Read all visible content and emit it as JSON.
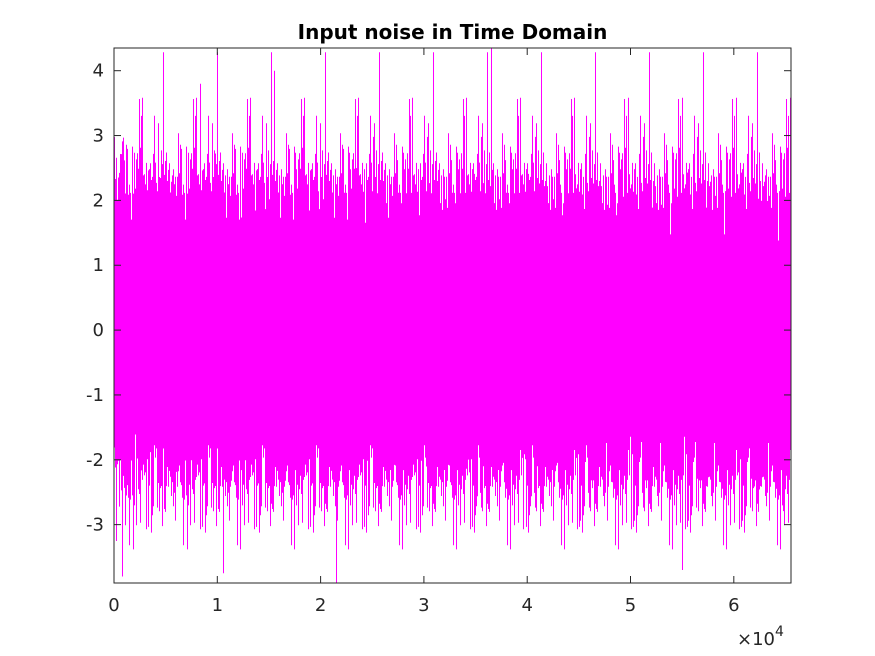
{
  "chart_data": {
    "type": "line",
    "title": "Input noise in Time Domain",
    "xlabel": "",
    "ylabel": "",
    "xlim": [
      0,
      65536
    ],
    "ylim": [
      -3.9,
      4.35
    ],
    "x_ticks": [
      0,
      10000,
      20000,
      30000,
      40000,
      50000,
      60000
    ],
    "x_tick_labels": [
      "0",
      "1",
      "2",
      "3",
      "4",
      "5",
      "6"
    ],
    "x_exponent": {
      "base": "×10",
      "power": "4"
    },
    "y_ticks": [
      -3,
      -2,
      -1,
      0,
      1,
      2,
      3,
      4
    ],
    "y_tick_labels": [
      "-3",
      "-2",
      "-1",
      "0",
      "1",
      "2",
      "3",
      "4"
    ],
    "grid": false,
    "box": true,
    "series": [
      {
        "color": "#ff00ff",
        "n_samples": 65536,
        "distribution": "gaussian",
        "mean": 0,
        "std": 1,
        "max": 4.35,
        "min": -3.9,
        "peak_points": [
          {
            "x": 36500,
            "y": 4.35
          },
          {
            "x": 15500,
            "y": 4.0
          },
          {
            "x": 8400,
            "y": 3.8
          },
          {
            "x": 21500,
            "y": -3.9
          },
          {
            "x": 800,
            "y": -3.8
          },
          {
            "x": 10600,
            "y": -3.75
          },
          {
            "x": 55000,
            "y": -3.7
          }
        ]
      }
    ]
  }
}
